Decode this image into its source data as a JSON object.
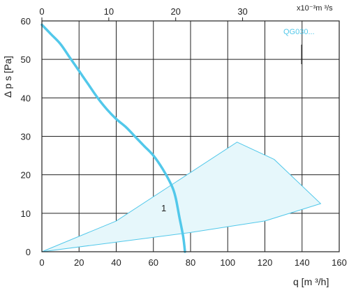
{
  "chart_data": {
    "type": "line",
    "xlabel": "q [m ³/h]",
    "ylabel": "Δ p s [Pa]",
    "xlim": [
      0,
      160
    ],
    "ylim": [
      0,
      60
    ],
    "x_ticks": [
      "0",
      "20",
      "40",
      "60",
      "80",
      "100",
      "120",
      "140",
      "160"
    ],
    "y_ticks": [
      "0",
      "10",
      "20",
      "30",
      "40",
      "50",
      "60"
    ],
    "secondary_x": {
      "label": "x10⁻³m ³/s",
      "ticks": [
        "0",
        "10",
        "20",
        "30"
      ],
      "conversion": "q [m³/h] / 3.6"
    },
    "grid": true,
    "series": [
      {
        "name": "QG030...",
        "curve_label": "1",
        "color": "#52c8ea",
        "x": [
          0,
          5,
          10,
          15,
          20,
          25,
          30,
          35,
          40,
          45,
          50,
          55,
          60,
          65,
          70,
          72,
          74,
          76,
          77
        ],
        "y": [
          59,
          56.5,
          54,
          50.5,
          47,
          43.5,
          40,
          37,
          34.5,
          32.5,
          30,
          27.5,
          25,
          21.5,
          17,
          14,
          9,
          4,
          0
        ]
      }
    ],
    "operating_area": {
      "fill": "#e6f7fb",
      "stroke": "#52c8ea",
      "outline": [
        [
          0,
          0
        ],
        [
          40,
          8
        ],
        [
          105,
          28.5
        ],
        [
          125,
          24
        ],
        [
          150,
          12.5
        ],
        [
          120,
          8
        ],
        [
          80,
          5
        ],
        [
          40,
          2.5
        ],
        [
          0,
          0
        ]
      ]
    }
  }
}
